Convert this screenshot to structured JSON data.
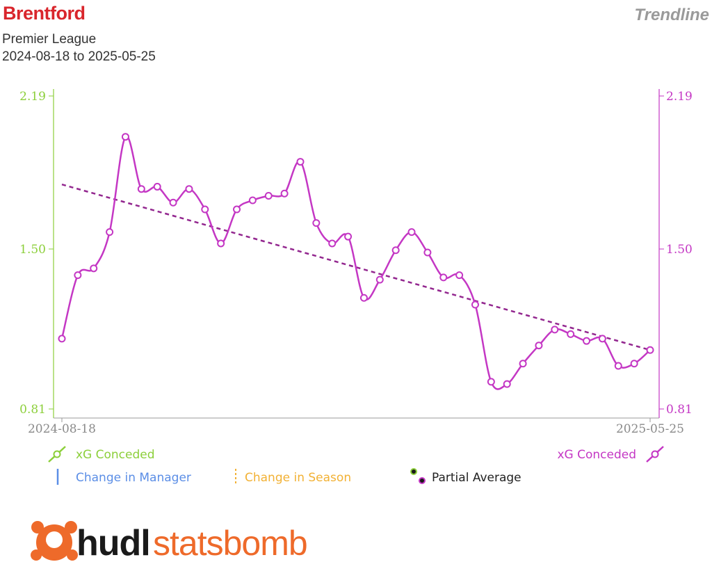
{
  "header": {
    "team": "Brentford",
    "competition": "Premier League",
    "date_range": "2024-08-18 to 2025-05-25",
    "chart_kind": "Trendline"
  },
  "colors": {
    "left_axis": "#8ccf3a",
    "right_axis": "#c437c4",
    "series": "#c437c4",
    "trend": "#93278f",
    "manager": "#5b8ee6",
    "season": "#f2b134",
    "brand_orange": "#ee6a2a",
    "brand_dark": "#1a1a1a"
  },
  "legend": {
    "left_series": "xG Conceded",
    "right_series": "xG Conceded",
    "manager": "Change in Manager",
    "season": "Change in Season",
    "partial": "Partial Average"
  },
  "brand": {
    "part1": "hudl",
    "part2": "statsbomb"
  },
  "chart_data": {
    "type": "line",
    "y_left_ticks": [
      "2.19",
      "1.50",
      "0.81"
    ],
    "y_right_ticks": [
      "2.19",
      "1.50",
      "0.81"
    ],
    "x_tick_labels": [
      "2024-08-18",
      "2025-05-25"
    ],
    "ylim": [
      0.81,
      2.19
    ],
    "series": [
      {
        "name": "xG Conceded",
        "values": [
          1.12,
          1.4,
          1.43,
          1.59,
          2.01,
          1.78,
          1.79,
          1.72,
          1.78,
          1.69,
          1.54,
          1.69,
          1.73,
          1.75,
          1.76,
          1.9,
          1.63,
          1.54,
          1.57,
          1.3,
          1.38,
          1.51,
          1.59,
          1.5,
          1.39,
          1.4,
          1.27,
          0.93,
          0.92,
          1.01,
          1.09,
          1.16,
          1.14,
          1.11,
          1.12,
          1.0,
          1.01,
          1.07
        ]
      }
    ],
    "trend": {
      "start": 1.8,
      "end": 1.07
    }
  }
}
